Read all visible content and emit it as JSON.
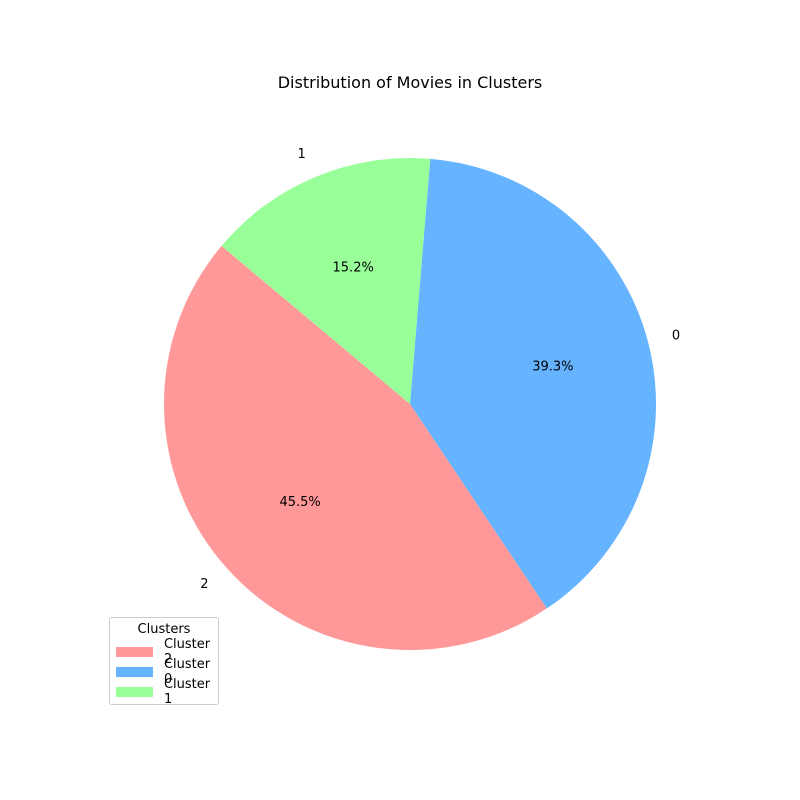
{
  "chart_data": {
    "type": "pie",
    "title": "Distribution of Movies in Clusters",
    "slices": [
      {
        "label": "2",
        "value": 45.5,
        "pct_text": "45.5%",
        "color": "#ff9999"
      },
      {
        "label": "0",
        "value": 39.3,
        "pct_text": "39.3%",
        "color": "#66b3ff"
      },
      {
        "label": "1",
        "value": 15.2,
        "pct_text": "15.2%",
        "color": "#99ff99"
      }
    ],
    "legend": {
      "title": "Clusters",
      "placement": "lower-left",
      "entries": [
        {
          "label": "Cluster 2",
          "color": "#ff9999"
        },
        {
          "label": "Cluster 0",
          "color": "#66b3ff"
        },
        {
          "label": "Cluster 1",
          "color": "#99ff99"
        }
      ]
    }
  }
}
